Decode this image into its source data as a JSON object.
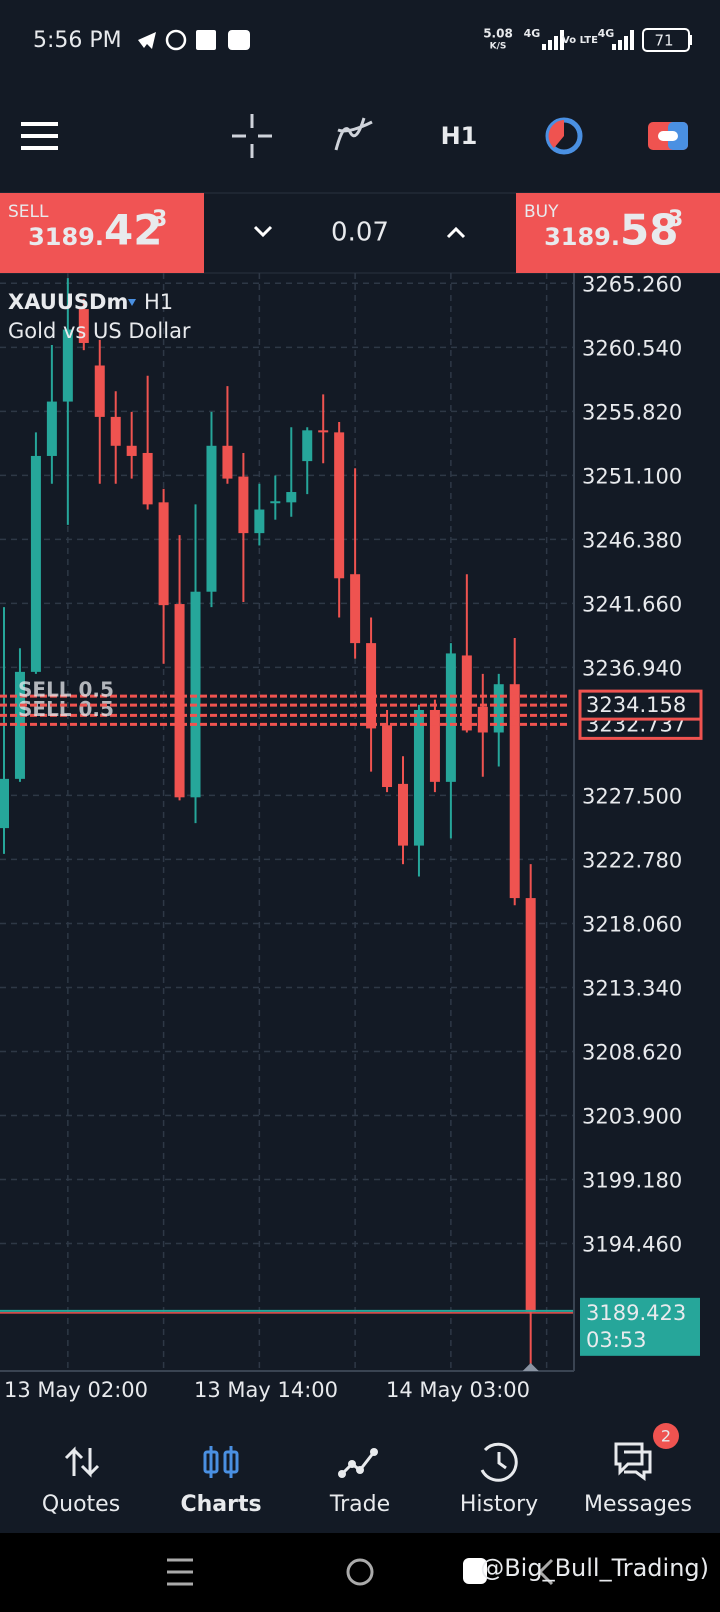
{
  "status_bar": {
    "time": "5:56 PM",
    "speed": "5.08",
    "speed_unit": "K/S",
    "network": "4G",
    "volte": "Vo LTE",
    "battery": "71"
  },
  "toolbar": {
    "timeframe": "H1"
  },
  "trade_panel": {
    "sell": {
      "label": "SELL",
      "price_main": "3189.",
      "price_big": "42",
      "price_sup": "3"
    },
    "volume": "0.07",
    "buy": {
      "label": "BUY",
      "price_main": "3189.",
      "price_big": "58",
      "price_sup": "3"
    }
  },
  "chart_data": {
    "type": "candlestick",
    "symbol": "XAUUSDm",
    "timeframe": "H1",
    "description": "Gold vs US Dollar",
    "up_color": "#26a69a",
    "down_color": "#ef5350",
    "open": [
      3225.09,
      3228.72,
      3236.61,
      3252.53,
      3256.54,
      3263.36,
      3259.2,
      3255.41,
      3253.28,
      3252.75,
      3249.11,
      3241.61,
      3227.36,
      3242.52,
      3253.28,
      3251.01,
      3246.84,
      3249.11,
      3249.11,
      3252.15,
      3254.42,
      3254.27,
      3243.81,
      3238.73,
      3232.67,
      3228.35,
      3223.8,
      3233.8,
      3228.5,
      3237.82,
      3234.03,
      3232.14,
      3235.7,
      3219.93
    ],
    "high": [
      3241.38,
      3238.35,
      3254.27,
      3260.71,
      3265.64,
      3264.12,
      3261.09,
      3257.3,
      3255.78,
      3258.44,
      3250.1,
      3246.69,
      3248.96,
      3255.78,
      3257.68,
      3252.75,
      3250.48,
      3251.09,
      3254.65,
      3254.65,
      3257.07,
      3255.03,
      3251.62,
      3240.62,
      3233.8,
      3230.39,
      3234.18,
      3234.56,
      3238.73,
      3243.81,
      3236.46,
      3236.46,
      3239.11,
      3222.43
    ],
    "low": [
      3223.19,
      3228.5,
      3236.46,
      3250.48,
      3247.45,
      3260.33,
      3250.48,
      3250.48,
      3250.86,
      3248.58,
      3237.21,
      3227.13,
      3225.46,
      3241.38,
      3250.48,
      3241.76,
      3245.93,
      3247.83,
      3248.05,
      3249.72,
      3251.99,
      3240.62,
      3237.59,
      3229.25,
      3227.74,
      3222.43,
      3221.52,
      3227.74,
      3224.33,
      3232.14,
      3228.88,
      3229.63,
      3219.4,
      3185.44
    ],
    "close": [
      3228.72,
      3236.61,
      3252.53,
      3256.54,
      3261.85,
      3260.86,
      3255.41,
      3253.28,
      3252.53,
      3248.96,
      3241.53,
      3227.36,
      3242.52,
      3253.28,
      3250.86,
      3246.84,
      3248.58,
      3249.19,
      3249.87,
      3254.42,
      3254.27,
      3243.51,
      3238.73,
      3232.44,
      3228.12,
      3223.8,
      3233.8,
      3228.5,
      3237.97,
      3232.29,
      3232.14,
      3235.7,
      3219.93,
      3189.42
    ],
    "ylim": [
      3185.06,
      3266.02
    ],
    "yticks": [
      {
        "value": 3265.26,
        "label": "3265.260"
      },
      {
        "value": 3260.54,
        "label": "3260.540"
      },
      {
        "value": 3255.82,
        "label": "3255.820"
      },
      {
        "value": 3251.1,
        "label": "3251.100"
      },
      {
        "value": 3246.38,
        "label": "3246.380"
      },
      {
        "value": 3241.66,
        "label": "3241.660"
      },
      {
        "value": 3236.94,
        "label": "3236.940"
      },
      {
        "value": 3227.5,
        "label": "3227.500"
      },
      {
        "value": 3222.78,
        "label": "3222.780"
      },
      {
        "value": 3218.06,
        "label": "3218.060"
      },
      {
        "value": 3213.34,
        "label": "3213.340"
      },
      {
        "value": 3208.62,
        "label": "3208.620"
      },
      {
        "value": 3203.9,
        "label": "3203.900"
      },
      {
        "value": 3199.18,
        "label": "3199.180"
      },
      {
        "value": 3194.46,
        "label": "3194.460"
      }
    ],
    "x_labels": [
      "13 May 02:00",
      "13 May 14:00",
      "14 May 03:00"
    ],
    "grid": true,
    "order_levels": [
      {
        "value": 3232.737,
        "label": "3232.737",
        "order": "SELL 0.5"
      },
      {
        "value": 3234.158,
        "label": "3234.158",
        "order": "SELL 0.5"
      }
    ],
    "current_price": {
      "value": 3189.423,
      "label": "3189.423",
      "countdown": "03:53"
    }
  },
  "bottom_nav": {
    "items": [
      "Quotes",
      "Charts",
      "Trade",
      "History",
      "Messages"
    ],
    "badge": "2"
  },
  "watermark": "@Big_Bull_Trading)"
}
